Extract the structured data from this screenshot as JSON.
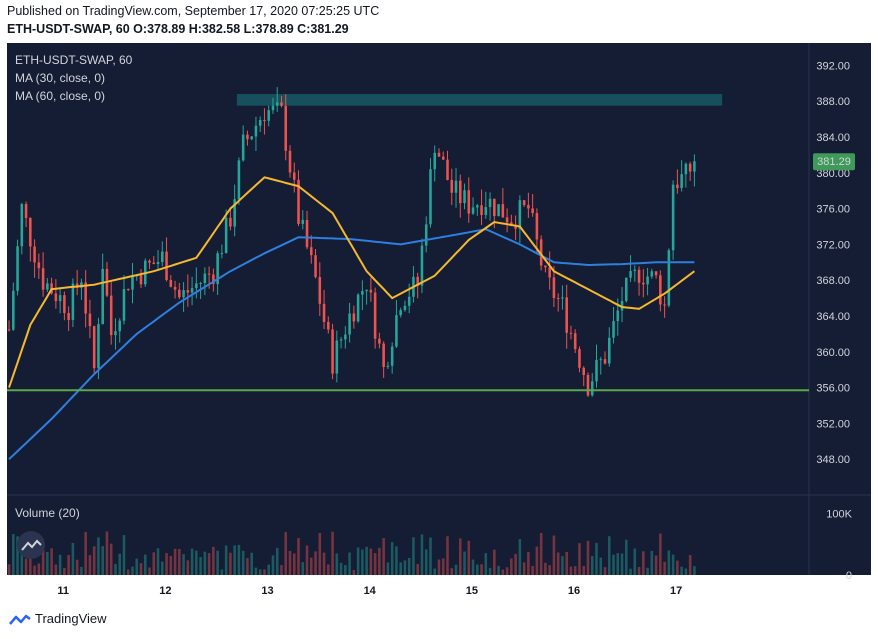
{
  "header": {
    "published": "Published on TradingView.com, September 17, 2020 07:25:25 UTC",
    "ohlc": "ETH-USDT-SWAP, 60 O:378.89 H:382.58 L:378.89 C:381.29"
  },
  "brand": {
    "name": "TradingView"
  },
  "colors": {
    "background": "#141d33",
    "up": "#26a69a",
    "down": "#ef5350",
    "ma30": "#f5b82e",
    "ma60": "#2f7fe0",
    "support": "#5aa84a",
    "resistance_zone": "#17505c",
    "last_price": "#3f9a5a"
  },
  "chart_data": {
    "type": "candlestick",
    "symbol_label": "ETH-USDT-SWAP, 60",
    "indicators": [
      "MA (30, close, 0)",
      "MA (60, close, 0)"
    ],
    "volume_label": "Volume (20)",
    "y_ticks": [
      392.0,
      388.0,
      384.0,
      380.0,
      376.0,
      372.0,
      368.0,
      364.0,
      360.0,
      356.0,
      352.0,
      348.0
    ],
    "ylim": [
      344.0,
      394.5
    ],
    "x_ticks": [
      "11",
      "12",
      "13",
      "14",
      "15",
      "16",
      "17"
    ],
    "volume_ticks": [
      "100K",
      "0"
    ],
    "volume_max": 120000,
    "last_price": "381.29",
    "support_level": 355.7,
    "resistance_zone": {
      "from_day": 12.7,
      "to_day": 17.45,
      "low": 387.5,
      "high": 388.8
    },
    "xlim_days": [
      10.45,
      18.3
    ],
    "x_window": {
      "start_day": 10.47,
      "step_hours": 1,
      "count": 162
    },
    "price_anchors": [
      [
        0,
        362.5
      ],
      [
        3,
        376.0
      ],
      [
        8,
        368.0
      ],
      [
        14,
        365.0
      ],
      [
        17,
        368.5
      ],
      [
        20,
        358.0
      ],
      [
        22,
        370.0
      ],
      [
        24,
        362.0
      ],
      [
        28,
        368.0
      ],
      [
        36,
        370.5
      ],
      [
        40,
        366.0
      ],
      [
        48,
        369.0
      ],
      [
        52,
        375.0
      ],
      [
        55,
        383.0
      ],
      [
        60,
        387.0
      ],
      [
        64,
        386.5
      ],
      [
        68,
        375.0
      ],
      [
        72,
        368.0
      ],
      [
        76,
        359.0
      ],
      [
        80,
        364.0
      ],
      [
        84,
        368.0
      ],
      [
        88,
        358.0
      ],
      [
        92,
        366.0
      ],
      [
        96,
        367.5
      ],
      [
        100,
        383.5
      ],
      [
        104,
        378.0
      ],
      [
        108,
        376.5
      ],
      [
        112,
        377.0
      ],
      [
        118,
        375.0
      ],
      [
        122,
        376.0
      ],
      [
        126,
        368.0
      ],
      [
        130,
        365.0
      ],
      [
        136,
        356.5
      ],
      [
        140,
        359.5
      ],
      [
        144,
        366.0
      ],
      [
        148,
        369.0
      ],
      [
        152,
        368.0
      ],
      [
        154,
        365.0
      ],
      [
        156,
        379.0
      ],
      [
        159,
        379.5
      ],
      [
        161,
        381.29
      ]
    ],
    "ma30_anchors": [
      [
        0,
        356.0
      ],
      [
        5,
        363.0
      ],
      [
        10,
        367.0
      ],
      [
        20,
        367.5
      ],
      [
        34,
        369.0
      ],
      [
        44,
        370.5
      ],
      [
        52,
        376.0
      ],
      [
        60,
        379.5
      ],
      [
        68,
        378.5
      ],
      [
        76,
        375.5
      ],
      [
        84,
        369.0
      ],
      [
        90,
        366.0
      ],
      [
        100,
        368.5
      ],
      [
        108,
        372.5
      ],
      [
        114,
        374.5
      ],
      [
        120,
        374.0
      ],
      [
        128,
        369.0
      ],
      [
        136,
        367.0
      ],
      [
        144,
        365.0
      ],
      [
        148,
        364.8
      ],
      [
        154,
        366.5
      ],
      [
        161,
        369.0
      ]
    ],
    "ma60_anchors": [
      [
        0,
        348.0
      ],
      [
        10,
        352.5
      ],
      [
        20,
        357.5
      ],
      [
        30,
        362.0
      ],
      [
        40,
        365.5
      ],
      [
        52,
        369.0
      ],
      [
        60,
        371.0
      ],
      [
        68,
        372.8
      ],
      [
        80,
        372.6
      ],
      [
        92,
        372.0
      ],
      [
        104,
        373.0
      ],
      [
        112,
        373.7
      ],
      [
        120,
        372.0
      ],
      [
        128,
        370.0
      ],
      [
        136,
        369.7
      ],
      [
        144,
        369.8
      ],
      [
        152,
        370.0
      ],
      [
        161,
        370.0
      ]
    ]
  }
}
